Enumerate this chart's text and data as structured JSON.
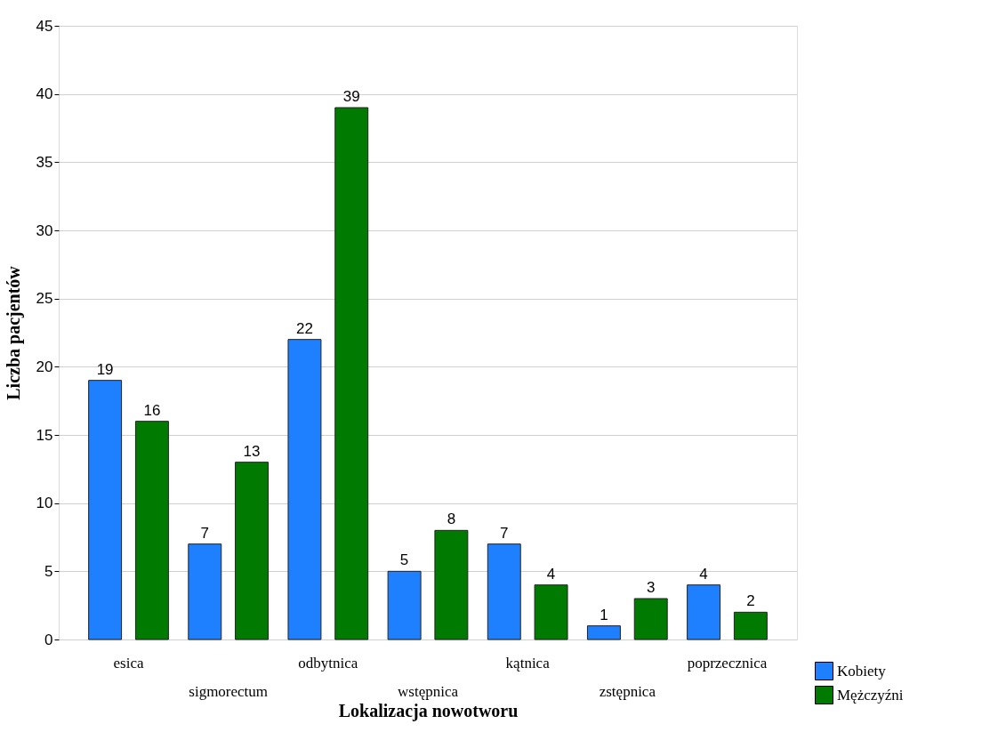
{
  "chart_data": {
    "type": "bar",
    "xlabel": "Lokalizacja nowotworu",
    "ylabel": "Liczba pacjentów",
    "categories": [
      "esica",
      "sigmorectum",
      "odbytnica",
      "wstępnica",
      "kątnica",
      "zstępnica",
      "poprzecznica"
    ],
    "series": [
      {
        "name": "Kobiety",
        "color": "#1e7fff",
        "values": [
          19,
          7,
          22,
          5,
          7,
          1,
          4
        ]
      },
      {
        "name": "Mężczyźni",
        "color": "#007a00",
        "values": [
          16,
          13,
          39,
          8,
          4,
          3,
          2
        ]
      }
    ],
    "ylim": [
      0,
      45
    ],
    "yticks": [
      0,
      5,
      10,
      15,
      20,
      25,
      30,
      35,
      40,
      45
    ],
    "grid": "y",
    "legend": "bottom right",
    "data_labels": true
  }
}
